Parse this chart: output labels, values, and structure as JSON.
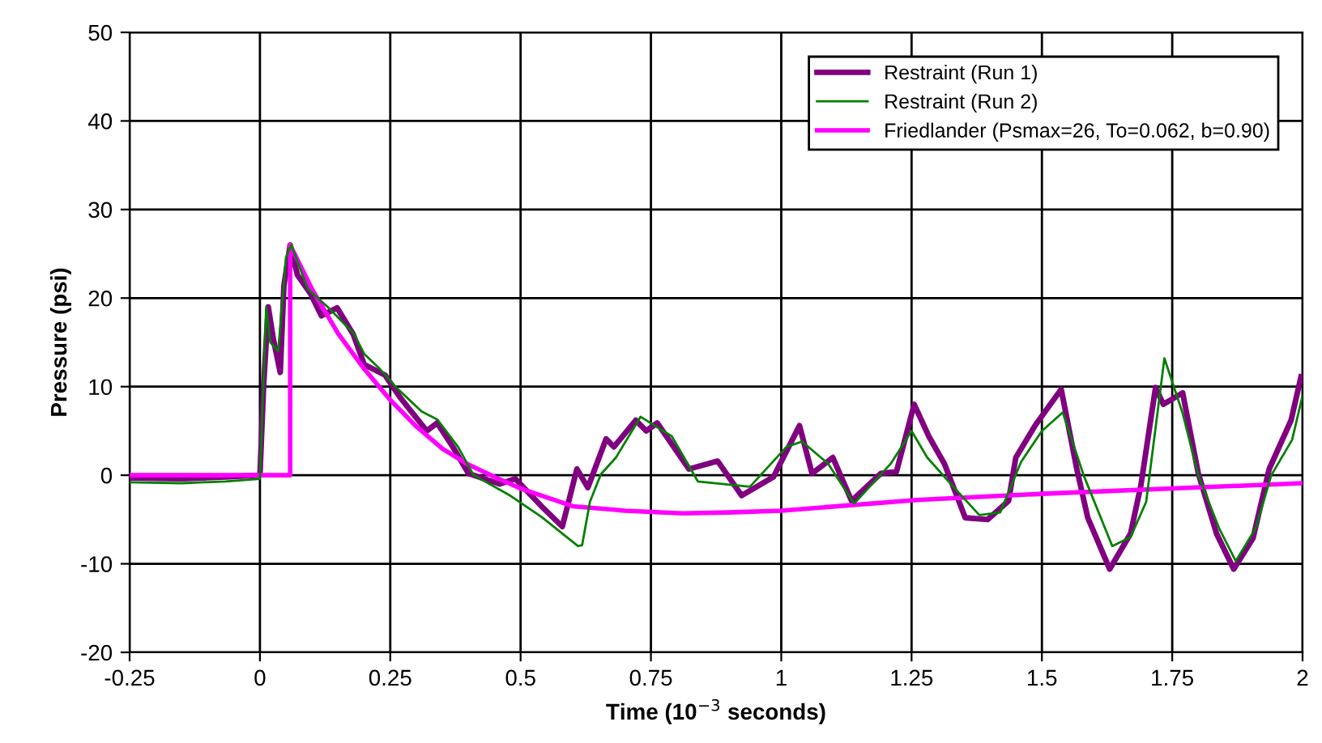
{
  "chart_data": {
    "type": "line",
    "xlabel": "Time (10$^{−3}$ seconds)",
    "ylabel": "Pressure (psi)",
    "xlim": [
      -0.25,
      2
    ],
    "xticks": [
      -0.25,
      0,
      0.25,
      0.5,
      0.75,
      1,
      1.25,
      1.5,
      1.75,
      2
    ],
    "ylim": [
      -20,
      50
    ],
    "yticks": [
      -20,
      -10,
      0,
      10,
      20,
      30,
      40,
      50
    ],
    "grid": true,
    "legend": "top right",
    "marker": "none",
    "line_style": "solid",
    "series": [
      {
        "name": "Restraint (Run 1)",
        "color": "#800080",
        "x": [
          -0.25,
          -0.15,
          -0.066,
          0,
          0.007,
          0.016,
          0.026,
          0.039,
          0.046,
          0.058,
          0.072,
          0.097,
          0.118,
          0.148,
          0.179,
          0.2,
          0.24,
          0.27,
          0.32,
          0.34,
          0.37,
          0.4,
          0.46,
          0.49,
          0.54,
          0.58,
          0.608,
          0.629,
          0.664,
          0.679,
          0.721,
          0.741,
          0.762,
          0.823,
          0.878,
          0.924,
          0.985,
          1.035,
          1.059,
          1.099,
          1.135,
          1.191,
          1.221,
          1.255,
          1.283,
          1.313,
          1.353,
          1.396,
          1.436,
          1.45,
          1.488,
          1.537,
          1.567,
          1.588,
          1.63,
          1.67,
          1.69,
          1.718,
          1.733,
          1.77,
          1.8,
          1.835,
          1.868,
          1.905,
          1.936,
          1.978,
          1.997
        ],
        "values": [
          -0.3,
          -0.4,
          -0.2,
          0,
          10,
          19,
          15.3,
          11.6,
          21.4,
          26,
          22.6,
          20.5,
          18,
          18.9,
          15.9,
          12.5,
          11.3,
          8.7,
          5,
          5.9,
          3.2,
          0.2,
          -1,
          -0.4,
          -3.5,
          -5.8,
          0.7,
          -1.4,
          4.1,
          3.2,
          6.2,
          5,
          5.9,
          0.7,
          1.6,
          -2.3,
          -0.2,
          5.6,
          0.2,
          2,
          -2.9,
          0.2,
          0.4,
          8,
          4.4,
          1.3,
          -4.8,
          -5,
          -2.9,
          2,
          5.7,
          9.7,
          0.7,
          -4.8,
          -10.6,
          -6.6,
          -1.1,
          9.9,
          8,
          9.3,
          0.2,
          -6.6,
          -10.6,
          -7.1,
          0.7,
          6.2,
          11.1
        ]
      },
      {
        "name": "Restraint (Run 2)",
        "color": "#008000",
        "x": [
          -0.25,
          -0.15,
          -0.066,
          0,
          0.012,
          0.02,
          0.035,
          0.05,
          0.06,
          0.092,
          0.13,
          0.18,
          0.2,
          0.23,
          0.26,
          0.31,
          0.34,
          0.38,
          0.41,
          0.48,
          0.54,
          0.61,
          0.618,
          0.633,
          0.654,
          0.683,
          0.73,
          0.79,
          0.84,
          0.94,
          1.01,
          1.04,
          1.09,
          1.14,
          1.21,
          1.25,
          1.28,
          1.33,
          1.38,
          1.42,
          1.46,
          1.5,
          1.54,
          1.58,
          1.635,
          1.67,
          1.7,
          1.735,
          1.77,
          1.8,
          1.84,
          1.872,
          1.91,
          1.94,
          1.98,
          2.0
        ],
        "values": [
          -0.8,
          -0.9,
          -0.7,
          -0.4,
          19,
          15,
          14,
          24.6,
          26,
          21,
          19,
          16,
          13.7,
          12,
          10,
          7.2,
          6.3,
          3.2,
          0,
          -2.3,
          -4.7,
          -8,
          -7.9,
          -3,
          0.1,
          2,
          6.6,
          4.4,
          -0.7,
          -1.3,
          3.2,
          3.8,
          1.3,
          -3.2,
          1.3,
          5,
          2,
          -1.3,
          -4.5,
          -4.2,
          1.5,
          5,
          7.1,
          0,
          -8,
          -7,
          -3,
          13.2,
          7,
          0,
          -6,
          -9.7,
          -6,
          0,
          4,
          9
        ]
      },
      {
        "name": "Friedlander (Psmax=26, To=0.062, b=0.90)",
        "color": "#ff00ff",
        "x": [
          -0.25,
          0.058,
          0.058,
          0.1,
          0.15,
          0.2,
          0.25,
          0.3,
          0.35,
          0.4,
          0.45,
          0.5,
          0.6,
          0.7,
          0.81,
          0.9,
          1.0,
          1.26,
          1.5,
          1.75,
          2.0
        ],
        "values": [
          0,
          0,
          26,
          21,
          16,
          12,
          8.5,
          5.5,
          3,
          1.2,
          -0.2,
          -1.5,
          -3.5,
          -4,
          -4.3,
          -4.2,
          -4,
          -2.8,
          -2.1,
          -1.5,
          -0.9
        ]
      }
    ]
  }
}
